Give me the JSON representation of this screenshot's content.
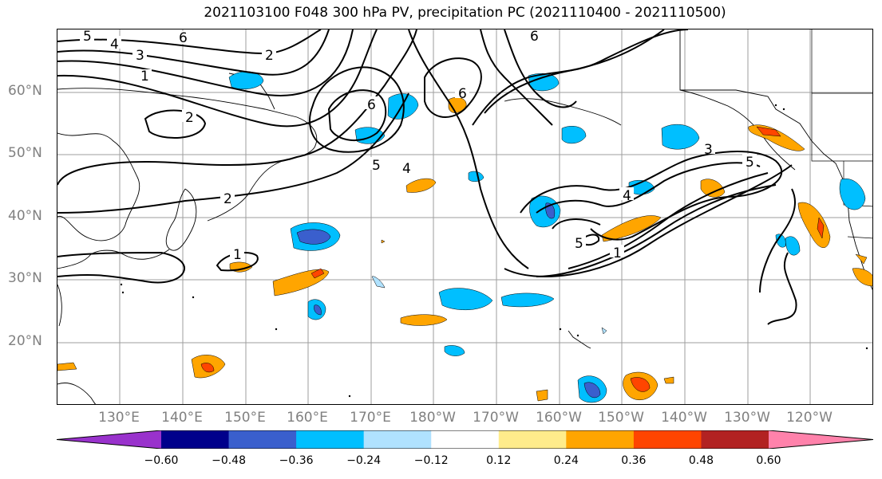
{
  "title": "2021103100 F048 300 hPa PV, precipitation PC (2021110400 - 2021110500)",
  "lat_labels": [
    "60°N",
    "50°N",
    "40°N",
    "30°N",
    "20°N"
  ],
  "lon_labels": [
    "130°E",
    "140°E",
    "150°E",
    "160°E",
    "170°E",
    "180°W",
    "170°W",
    "160°W",
    "150°W",
    "140°W",
    "130°W",
    "120°W"
  ],
  "contour_labels": {
    "pv_5_nw": "5",
    "pv_4_nw": "4",
    "pv_3_nw": "3",
    "pv_6_nw": "6",
    "pv_1_nw": "1",
    "pv_2_north": "2",
    "pv_2_japan": "2",
    "pv_2_sea": "2",
    "pv_1_mid": "1",
    "pv_6_center": "6",
    "pv_5_center": "5",
    "pv_4_center": "4",
    "pv_6_north": "6",
    "pv_6_arc": "6",
    "pv_3_east": "3",
    "pv_5_east": "5",
    "pv_4_trough": "4",
    "pv_5_trough": "5",
    "pv_1_trough": "1"
  },
  "colorbar": {
    "colors": [
      "#9932cc",
      "#00008b",
      "#3a5fcd",
      "#00bfff",
      "#b0e2ff",
      "#ffffff",
      "#ffec8b",
      "#ffa500",
      "#ff4500",
      "#b22222",
      "#ff82ab"
    ],
    "tick_labels": [
      "−0.60",
      "−0.48",
      "−0.36",
      "−0.24",
      "−0.12",
      "0.12",
      "0.24",
      "0.36",
      "0.48",
      "0.60"
    ]
  }
}
